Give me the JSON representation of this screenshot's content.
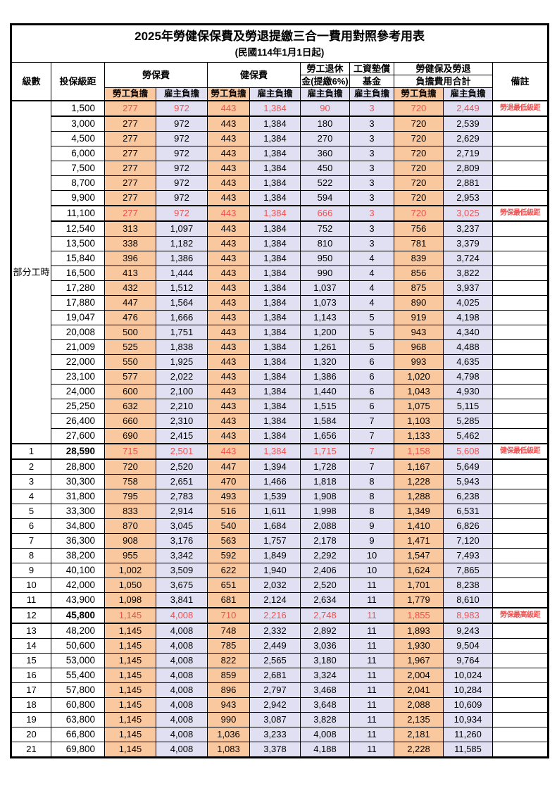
{
  "title": "2025年勞健保保費及勞退提繳三合一費用對照參考用表",
  "subtitle": "(民國114年1月1日起)",
  "colors": {
    "employee_share_bg": "#f9c89e",
    "employer_share_bg": "#e0e0f2",
    "highlight_text": "#f05050",
    "border": "#000000",
    "background": "#ffffff"
  },
  "header": {
    "level": "級數",
    "bracket": "投保級距",
    "labor_insurance": "勞保費",
    "health_insurance": "健保費",
    "pension_line1": "勞工退休",
    "pension_line2": "金(提繳6%)",
    "wage_fund_line1": "工資墊償",
    "wage_fund_line2": "基金",
    "total_line1": "勞健保及勞退",
    "total_line2": "負擔費用合計",
    "remark": "備註",
    "employee_share": "勞工負擔",
    "employer_share": "雇主負擔"
  },
  "part_time": {
    "label": "部分工時",
    "span": 23
  },
  "rows": [
    {
      "level": "",
      "bracket": "1,500",
      "v": [
        "277",
        "972",
        "443",
        "1,384",
        "90",
        "3",
        "720",
        "2,449"
      ],
      "remark": "勞退最低級距",
      "hl": true,
      "b": false
    },
    {
      "level": "",
      "bracket": "3,000",
      "v": [
        "277",
        "972",
        "443",
        "1,384",
        "180",
        "3",
        "720",
        "2,539"
      ],
      "remark": "",
      "hl": false,
      "b": false
    },
    {
      "level": "",
      "bracket": "4,500",
      "v": [
        "277",
        "972",
        "443",
        "1,384",
        "270",
        "3",
        "720",
        "2,629"
      ],
      "remark": "",
      "hl": false,
      "b": false
    },
    {
      "level": "",
      "bracket": "6,000",
      "v": [
        "277",
        "972",
        "443",
        "1,384",
        "360",
        "3",
        "720",
        "2,719"
      ],
      "remark": "",
      "hl": false,
      "b": false
    },
    {
      "level": "",
      "bracket": "7,500",
      "v": [
        "277",
        "972",
        "443",
        "1,384",
        "450",
        "3",
        "720",
        "2,809"
      ],
      "remark": "",
      "hl": false,
      "b": false
    },
    {
      "level": "",
      "bracket": "8,700",
      "v": [
        "277",
        "972",
        "443",
        "1,384",
        "522",
        "3",
        "720",
        "2,881"
      ],
      "remark": "",
      "hl": false,
      "b": false
    },
    {
      "level": "",
      "bracket": "9,900",
      "v": [
        "277",
        "972",
        "443",
        "1,384",
        "594",
        "3",
        "720",
        "2,953"
      ],
      "remark": "",
      "hl": false,
      "b": false
    },
    {
      "level": "",
      "bracket": "11,100",
      "v": [
        "277",
        "972",
        "443",
        "1,384",
        "666",
        "3",
        "720",
        "3,025"
      ],
      "remark": "勞保最低級距",
      "hl": true,
      "b": false
    },
    {
      "level": "",
      "bracket": "12,540",
      "v": [
        "313",
        "1,097",
        "443",
        "1,384",
        "752",
        "3",
        "756",
        "3,237"
      ],
      "remark": "",
      "hl": false,
      "b": false
    },
    {
      "level": "",
      "bracket": "13,500",
      "v": [
        "338",
        "1,182",
        "443",
        "1,384",
        "810",
        "3",
        "781",
        "3,379"
      ],
      "remark": "",
      "hl": false,
      "b": false
    },
    {
      "level": "",
      "bracket": "15,840",
      "v": [
        "396",
        "1,386",
        "443",
        "1,384",
        "950",
        "4",
        "839",
        "3,724"
      ],
      "remark": "",
      "hl": false,
      "b": false
    },
    {
      "level": "",
      "bracket": "16,500",
      "v": [
        "413",
        "1,444",
        "443",
        "1,384",
        "990",
        "4",
        "856",
        "3,822"
      ],
      "remark": "",
      "hl": false,
      "b": false
    },
    {
      "level": "",
      "bracket": "17,280",
      "v": [
        "432",
        "1,512",
        "443",
        "1,384",
        "1,037",
        "4",
        "875",
        "3,937"
      ],
      "remark": "",
      "hl": false,
      "b": false
    },
    {
      "level": "",
      "bracket": "17,880",
      "v": [
        "447",
        "1,564",
        "443",
        "1,384",
        "1,073",
        "4",
        "890",
        "4,025"
      ],
      "remark": "",
      "hl": false,
      "b": false
    },
    {
      "level": "",
      "bracket": "19,047",
      "v": [
        "476",
        "1,666",
        "443",
        "1,384",
        "1,143",
        "5",
        "919",
        "4,198"
      ],
      "remark": "",
      "hl": false,
      "b": false
    },
    {
      "level": "",
      "bracket": "20,008",
      "v": [
        "500",
        "1,751",
        "443",
        "1,384",
        "1,200",
        "5",
        "943",
        "4,340"
      ],
      "remark": "",
      "hl": false,
      "b": false
    },
    {
      "level": "",
      "bracket": "21,009",
      "v": [
        "525",
        "1,838",
        "443",
        "1,384",
        "1,261",
        "5",
        "968",
        "4,488"
      ],
      "remark": "",
      "hl": false,
      "b": false
    },
    {
      "level": "",
      "bracket": "22,000",
      "v": [
        "550",
        "1,925",
        "443",
        "1,384",
        "1,320",
        "6",
        "993",
        "4,635"
      ],
      "remark": "",
      "hl": false,
      "b": false
    },
    {
      "level": "",
      "bracket": "23,100",
      "v": [
        "577",
        "2,022",
        "443",
        "1,384",
        "1,386",
        "6",
        "1,020",
        "4,798"
      ],
      "remark": "",
      "hl": false,
      "b": false
    },
    {
      "level": "",
      "bracket": "24,000",
      "v": [
        "600",
        "2,100",
        "443",
        "1,384",
        "1,440",
        "6",
        "1,043",
        "4,930"
      ],
      "remark": "",
      "hl": false,
      "b": false
    },
    {
      "level": "",
      "bracket": "25,250",
      "v": [
        "632",
        "2,210",
        "443",
        "1,384",
        "1,515",
        "6",
        "1,075",
        "5,115"
      ],
      "remark": "",
      "hl": false,
      "b": false
    },
    {
      "level": "",
      "bracket": "26,400",
      "v": [
        "660",
        "2,310",
        "443",
        "1,384",
        "1,584",
        "7",
        "1,103",
        "5,285"
      ],
      "remark": "",
      "hl": false,
      "b": false
    },
    {
      "level": "",
      "bracket": "27,600",
      "v": [
        "690",
        "2,415",
        "443",
        "1,384",
        "1,656",
        "7",
        "1,133",
        "5,462"
      ],
      "remark": "",
      "hl": false,
      "b": false
    },
    {
      "level": "1",
      "bracket": "28,590",
      "v": [
        "715",
        "2,501",
        "443",
        "1,384",
        "1,715",
        "7",
        "1,158",
        "5,608"
      ],
      "remark": "健保最低級距",
      "hl": true,
      "b": true
    },
    {
      "level": "2",
      "bracket": "28,800",
      "v": [
        "720",
        "2,520",
        "447",
        "1,394",
        "1,728",
        "7",
        "1,167",
        "5,649"
      ],
      "remark": "",
      "hl": false,
      "b": false
    },
    {
      "level": "3",
      "bracket": "30,300",
      "v": [
        "758",
        "2,651",
        "470",
        "1,466",
        "1,818",
        "8",
        "1,228",
        "5,943"
      ],
      "remark": "",
      "hl": false,
      "b": false
    },
    {
      "level": "4",
      "bracket": "31,800",
      "v": [
        "795",
        "2,783",
        "493",
        "1,539",
        "1,908",
        "8",
        "1,288",
        "6,238"
      ],
      "remark": "",
      "hl": false,
      "b": false
    },
    {
      "level": "5",
      "bracket": "33,300",
      "v": [
        "833",
        "2,914",
        "516",
        "1,611",
        "1,998",
        "8",
        "1,349",
        "6,531"
      ],
      "remark": "",
      "hl": false,
      "b": false
    },
    {
      "level": "6",
      "bracket": "34,800",
      "v": [
        "870",
        "3,045",
        "540",
        "1,684",
        "2,088",
        "9",
        "1,410",
        "6,826"
      ],
      "remark": "",
      "hl": false,
      "b": false
    },
    {
      "level": "7",
      "bracket": "36,300",
      "v": [
        "908",
        "3,176",
        "563",
        "1,757",
        "2,178",
        "9",
        "1,471",
        "7,120"
      ],
      "remark": "",
      "hl": false,
      "b": false
    },
    {
      "level": "8",
      "bracket": "38,200",
      "v": [
        "955",
        "3,342",
        "592",
        "1,849",
        "2,292",
        "10",
        "1,547",
        "7,493"
      ],
      "remark": "",
      "hl": false,
      "b": false
    },
    {
      "level": "9",
      "bracket": "40,100",
      "v": [
        "1,002",
        "3,509",
        "622",
        "1,940",
        "2,406",
        "10",
        "1,624",
        "7,865"
      ],
      "remark": "",
      "hl": false,
      "b": false
    },
    {
      "level": "10",
      "bracket": "42,000",
      "v": [
        "1,050",
        "3,675",
        "651",
        "2,032",
        "2,520",
        "11",
        "1,701",
        "8,238"
      ],
      "remark": "",
      "hl": false,
      "b": false
    },
    {
      "level": "11",
      "bracket": "43,900",
      "v": [
        "1,098",
        "3,841",
        "681",
        "2,124",
        "2,634",
        "11",
        "1,779",
        "8,610"
      ],
      "remark": "",
      "hl": false,
      "b": false
    },
    {
      "level": "12",
      "bracket": "45,800",
      "v": [
        "1,145",
        "4,008",
        "710",
        "2,216",
        "2,748",
        "11",
        "1,855",
        "8,983"
      ],
      "remark": "勞保最高級距",
      "hl": true,
      "b": true
    },
    {
      "level": "13",
      "bracket": "48,200",
      "v": [
        "1,145",
        "4,008",
        "748",
        "2,332",
        "2,892",
        "11",
        "1,893",
        "9,243"
      ],
      "remark": "",
      "hl": false,
      "b": false
    },
    {
      "level": "14",
      "bracket": "50,600",
      "v": [
        "1,145",
        "4,008",
        "785",
        "2,449",
        "3,036",
        "11",
        "1,930",
        "9,504"
      ],
      "remark": "",
      "hl": false,
      "b": false
    },
    {
      "level": "15",
      "bracket": "53,000",
      "v": [
        "1,145",
        "4,008",
        "822",
        "2,565",
        "3,180",
        "11",
        "1,967",
        "9,764"
      ],
      "remark": "",
      "hl": false,
      "b": false
    },
    {
      "level": "16",
      "bracket": "55,400",
      "v": [
        "1,145",
        "4,008",
        "859",
        "2,681",
        "3,324",
        "11",
        "2,004",
        "10,024"
      ],
      "remark": "",
      "hl": false,
      "b": false
    },
    {
      "level": "17",
      "bracket": "57,800",
      "v": [
        "1,145",
        "4,008",
        "896",
        "2,797",
        "3,468",
        "11",
        "2,041",
        "10,284"
      ],
      "remark": "",
      "hl": false,
      "b": false
    },
    {
      "level": "18",
      "bracket": "60,800",
      "v": [
        "1,145",
        "4,008",
        "943",
        "2,942",
        "3,648",
        "11",
        "2,088",
        "10,609"
      ],
      "remark": "",
      "hl": false,
      "b": false
    },
    {
      "level": "19",
      "bracket": "63,800",
      "v": [
        "1,145",
        "4,008",
        "990",
        "3,087",
        "3,828",
        "11",
        "2,135",
        "10,934"
      ],
      "remark": "",
      "hl": false,
      "b": false
    },
    {
      "level": "20",
      "bracket": "66,800",
      "v": [
        "1,145",
        "4,008",
        "1,036",
        "3,233",
        "4,008",
        "11",
        "2,181",
        "11,260"
      ],
      "remark": "",
      "hl": false,
      "b": false
    },
    {
      "level": "21",
      "bracket": "69,800",
      "v": [
        "1,145",
        "4,008",
        "1,083",
        "3,378",
        "4,188",
        "11",
        "2,228",
        "11,585"
      ],
      "remark": "",
      "hl": false,
      "b": false
    }
  ]
}
